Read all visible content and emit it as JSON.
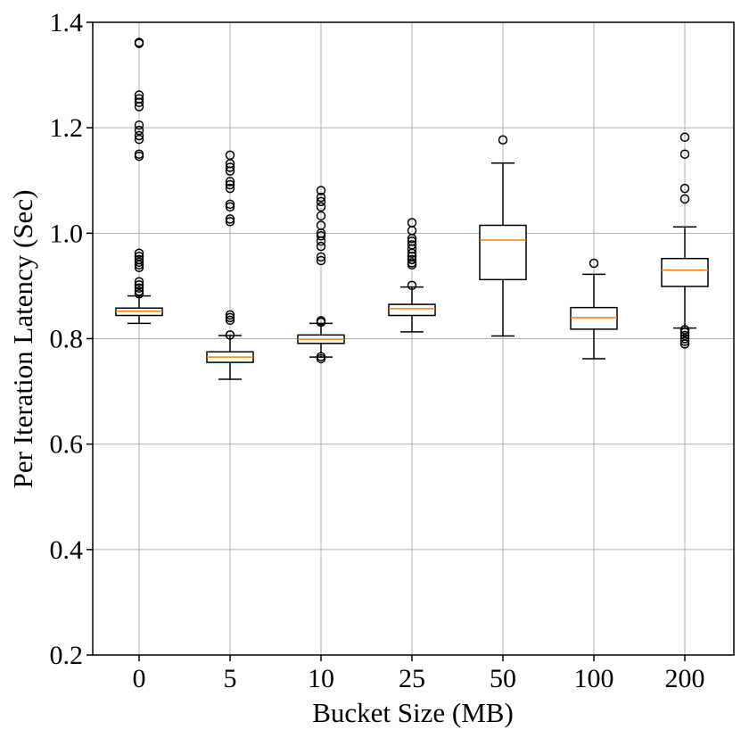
{
  "chart_data": {
    "type": "box",
    "title": "",
    "xlabel": "Bucket Size (MB)",
    "ylabel": "Per Iteration Latency (Sec)",
    "ylim": [
      0.2,
      1.4
    ],
    "yticks": [
      0.2,
      0.4,
      0.6,
      0.8,
      1.0,
      1.2,
      1.4
    ],
    "ytick_labels": [
      "0.2",
      "0.4",
      "0.6",
      "0.8",
      "1.0",
      "1.2",
      "1.4"
    ],
    "grid": true,
    "categories": [
      "0",
      "5",
      "10",
      "25",
      "50",
      "100",
      "200"
    ],
    "boxes": [
      {
        "category": "0",
        "whislo": 0.829,
        "q1": 0.844,
        "med": 0.852,
        "q3": 0.858,
        "whishi": 0.881,
        "fliers": [
          1.362,
          1.36,
          1.262,
          1.255,
          1.248,
          1.24,
          1.205,
          1.195,
          1.185,
          1.178,
          1.15,
          1.146,
          0.962,
          0.956,
          0.95,
          0.945,
          0.94,
          0.935,
          0.908,
          0.902,
          0.896,
          0.89,
          0.885
        ]
      },
      {
        "category": "5",
        "whislo": 0.723,
        "q1": 0.755,
        "med": 0.765,
        "q3": 0.775,
        "whishi": 0.806,
        "fliers": [
          1.148,
          1.132,
          1.125,
          1.118,
          1.098,
          1.092,
          1.085,
          1.055,
          1.05,
          1.027,
          1.022,
          0.845,
          0.84,
          0.835,
          0.807
        ]
      },
      {
        "category": "10",
        "whislo": 0.765,
        "q1": 0.791,
        "med": 0.799,
        "q3": 0.807,
        "whishi": 0.829,
        "fliers": [
          1.081,
          1.068,
          1.06,
          1.05,
          1.033,
          1.015,
          1.0,
          0.995,
          0.985,
          0.975,
          0.955,
          0.948,
          0.834,
          0.831,
          0.766,
          0.762
        ]
      },
      {
        "category": "25",
        "whislo": 0.813,
        "q1": 0.844,
        "med": 0.857,
        "q3": 0.865,
        "whishi": 0.898,
        "fliers": [
          1.02,
          1.005,
          0.99,
          0.985,
          0.978,
          0.97,
          0.962,
          0.956,
          0.95,
          0.944,
          0.94,
          0.901
        ]
      },
      {
        "category": "50",
        "whislo": 0.805,
        "q1": 0.912,
        "med": 0.987,
        "q3": 1.015,
        "whishi": 1.133,
        "fliers": [
          1.177
        ]
      },
      {
        "category": "100",
        "whislo": 0.762,
        "q1": 0.818,
        "med": 0.84,
        "q3": 0.859,
        "whishi": 0.922,
        "fliers": [
          0.943
        ]
      },
      {
        "category": "200",
        "whislo": 0.82,
        "q1": 0.899,
        "med": 0.93,
        "q3": 0.952,
        "whishi": 1.012,
        "fliers": [
          1.182,
          1.15,
          1.085,
          1.065,
          0.817,
          0.812,
          0.806,
          0.8,
          0.795,
          0.79
        ]
      }
    ],
    "colors": {
      "box": "#000000",
      "median": "#ff7f0e",
      "grid": "#b0b0b0",
      "flier": "#000000"
    }
  }
}
